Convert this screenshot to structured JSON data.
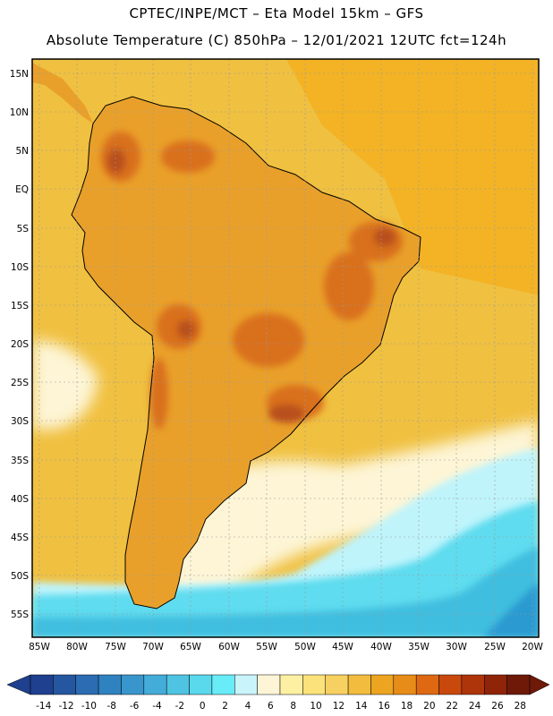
{
  "header": {
    "line1": "CPTEC/INPE/MCT –  Eta Model 15km – GFS",
    "line2": "Absolute Temperature (C) 850hPa – 12/01/2021 12UTC fct=124h"
  },
  "map": {
    "lat_labels": [
      "15N",
      "10N",
      "5N",
      "EQ",
      "5S",
      "10S",
      "15S",
      "20S",
      "25S",
      "30S",
      "35S",
      "40S",
      "45S",
      "50S",
      "55S"
    ],
    "lon_labels": [
      "85W",
      "80W",
      "75W",
      "70W",
      "65W",
      "60W",
      "55W",
      "50W",
      "45W",
      "40W",
      "35W",
      "30W",
      "25W",
      "20W"
    ],
    "colors": {
      "ocean_warm": "#f3b324",
      "ocean_mild": "#f0c040",
      "land_base": "#e9a02a",
      "land_hot": "#d96f1e",
      "land_hottest": "#b8501a",
      "cool_pale": "#fdf5d6",
      "cold_1": "#bff4fb",
      "cold_2": "#5fdcef",
      "cold_3": "#3fbedf",
      "cold_4": "#2a9ad0",
      "coast": "#000000"
    }
  },
  "colorbar": {
    "ticks": [
      "-14",
      "-12",
      "-10",
      "-8",
      "-6",
      "-4",
      "-2",
      "0",
      "2",
      "4",
      "6",
      "8",
      "10",
      "12",
      "14",
      "16",
      "18",
      "20",
      "22",
      "24",
      "26",
      "28"
    ],
    "colors": [
      "#1f3f8f",
      "#2557a0",
      "#2b6cb2",
      "#2f82c0",
      "#3996cc",
      "#44acd8",
      "#4fc4e2",
      "#5ad8ec",
      "#68ecf7",
      "#c8f4fa",
      "#fdf5d6",
      "#fdf0a2",
      "#fbe27a",
      "#f7d062",
      "#f2bc3e",
      "#eda420",
      "#e78c18",
      "#de6912",
      "#c9480c",
      "#ae3409",
      "#8f2409",
      "#6f1908"
    ]
  }
}
